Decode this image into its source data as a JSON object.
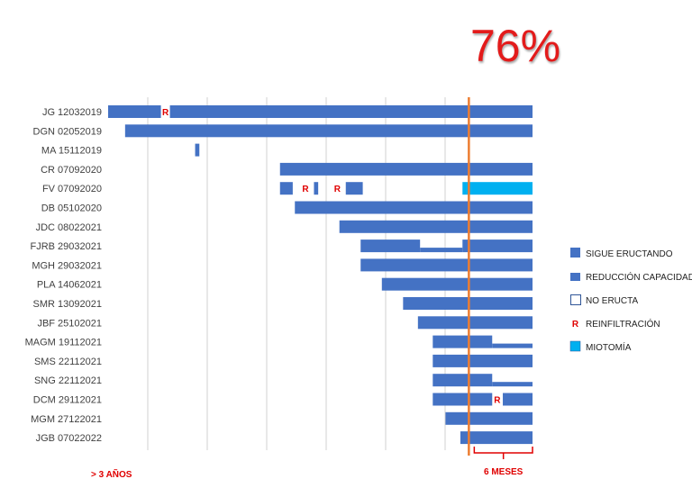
{
  "headline": "76%",
  "colors": {
    "sigue": "#4472c4",
    "miotomia": "#00b0f0",
    "marker_line": "#ed7d31",
    "red": "#e00000",
    "grid": "#d0d0d0"
  },
  "legend": [
    {
      "label": "SIGUE ERUCTANDO",
      "kind": "sigue"
    },
    {
      "label": "REDUCCIÓN CAPACIDAD",
      "kind": "reduccion"
    },
    {
      "label": "NO ERUCTA",
      "kind": "no"
    },
    {
      "label": "REINFILTRACIÓN",
      "kind": "reinf",
      "symbol": "R"
    },
    {
      "label": "MIOTOMÍA",
      "kind": "miotomia"
    }
  ],
  "footer": {
    "left": "> 3 AÑOS",
    "right": "6 MESES"
  },
  "chart_data": {
    "type": "gantt",
    "x_range": [
      0,
      100
    ],
    "six_month_line_x": 85,
    "rows": [
      {
        "label": "JG 12032019",
        "segments": [
          {
            "start": 0,
            "end": 13,
            "kind": "sigue"
          },
          {
            "start": 14.5,
            "end": 100,
            "kind": "sigue"
          }
        ],
        "marks": [
          {
            "x": 13.5,
            "text": "R"
          }
        ]
      },
      {
        "label": "DGN 02052019",
        "segments": [
          {
            "start": 4,
            "end": 100,
            "kind": "sigue"
          }
        ],
        "marks": []
      },
      {
        "label": "MA 15112019",
        "segments": [
          {
            "start": 20.5,
            "end": 21.5,
            "kind": "sigue"
          }
        ],
        "marks": []
      },
      {
        "label": "CR 07092020",
        "segments": [
          {
            "start": 40.5,
            "end": 100,
            "kind": "sigue"
          }
        ],
        "marks": []
      },
      {
        "label": "FV 07092020",
        "segments": [
          {
            "start": 40.5,
            "end": 43.5,
            "kind": "sigue"
          },
          {
            "start": 48.5,
            "end": 49.5,
            "kind": "sigue"
          },
          {
            "start": 56,
            "end": 60,
            "kind": "sigue"
          },
          {
            "start": 83.5,
            "end": 100,
            "kind": "miotomia"
          }
        ],
        "marks": [
          {
            "x": 46.5,
            "text": "R"
          },
          {
            "x": 54,
            "text": "R"
          }
        ]
      },
      {
        "label": "DB 05102020",
        "segments": [
          {
            "start": 44,
            "end": 100,
            "kind": "sigue"
          }
        ],
        "marks": []
      },
      {
        "label": "JDC 08022021",
        "segments": [
          {
            "start": 54.5,
            "end": 100,
            "kind": "sigue"
          }
        ],
        "marks": []
      },
      {
        "label": "FJRB 29032021",
        "segments": [
          {
            "start": 59.5,
            "end": 73.5,
            "kind": "sigue"
          },
          {
            "start": 73.5,
            "end": 83.5,
            "kind": "reduccion"
          },
          {
            "start": 83.5,
            "end": 100,
            "kind": "sigue"
          }
        ],
        "marks": []
      },
      {
        "label": "MGH 29032021",
        "segments": [
          {
            "start": 59.5,
            "end": 100,
            "kind": "sigue"
          }
        ],
        "marks": []
      },
      {
        "label": "PLA 14062021",
        "segments": [
          {
            "start": 64.5,
            "end": 100,
            "kind": "sigue"
          }
        ],
        "marks": []
      },
      {
        "label": "SMR 13092021",
        "segments": [
          {
            "start": 69.5,
            "end": 100,
            "kind": "sigue"
          }
        ],
        "marks": []
      },
      {
        "label": "JBF 25102021",
        "segments": [
          {
            "start": 73,
            "end": 100,
            "kind": "sigue"
          }
        ],
        "marks": []
      },
      {
        "label": "MAGM 19112021",
        "segments": [
          {
            "start": 76.5,
            "end": 90.5,
            "kind": "sigue"
          },
          {
            "start": 90.5,
            "end": 100,
            "kind": "reduccion"
          }
        ],
        "marks": []
      },
      {
        "label": "SMS 22112021",
        "segments": [
          {
            "start": 76.5,
            "end": 100,
            "kind": "sigue"
          }
        ],
        "marks": []
      },
      {
        "label": "SNG 22112021",
        "segments": [
          {
            "start": 76.5,
            "end": 90.5,
            "kind": "sigue"
          },
          {
            "start": 90.5,
            "end": 100,
            "kind": "reduccion"
          }
        ],
        "marks": []
      },
      {
        "label": "DCM 29112021",
        "segments": [
          {
            "start": 76.5,
            "end": 90.5,
            "kind": "sigue"
          },
          {
            "start": 93,
            "end": 100,
            "kind": "sigue"
          }
        ],
        "marks": [
          {
            "x": 91.7,
            "text": "R"
          }
        ]
      },
      {
        "label": "MGM 27122021",
        "segments": [
          {
            "start": 79.5,
            "end": 100,
            "kind": "sigue"
          }
        ],
        "marks": []
      },
      {
        "label": "JGB 07022022",
        "segments": [
          {
            "start": 83,
            "end": 100,
            "kind": "sigue"
          }
        ],
        "marks": []
      }
    ]
  }
}
